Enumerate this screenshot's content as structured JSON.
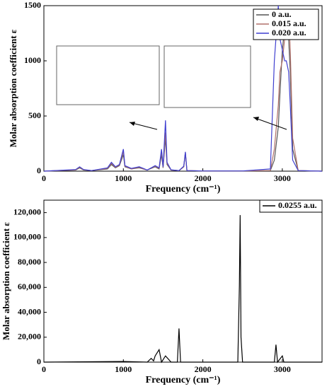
{
  "chart_data": [
    {
      "type": "line",
      "ylabel": "Molar absorption coefficient ε",
      "xlabel": "Frequency (cm⁻¹)",
      "xlim": [
        0,
        3500
      ],
      "ylim": [
        0,
        1500
      ],
      "xticks": [
        0,
        1000,
        2000,
        3000
      ],
      "yticks": [
        0,
        500,
        1000,
        1500
      ],
      "legend": "upper right",
      "x": [
        0,
        400,
        450,
        500,
        600,
        800,
        850,
        900,
        950,
        1000,
        1020,
        1100,
        1200,
        1250,
        1300,
        1400,
        1450,
        1480,
        1500,
        1530,
        1550,
        1600,
        1700,
        1760,
        1780,
        1800,
        2000,
        2500,
        2850,
        2900,
        2950,
        2970,
        3000,
        3030,
        3050,
        3080,
        3100,
        3130,
        3200,
        3500
      ],
      "series": [
        {
          "name": "0 a.u.",
          "color": "#555555",
          "values": [
            0,
            10,
            30,
            10,
            5,
            20,
            60,
            30,
            50,
            150,
            40,
            20,
            30,
            20,
            10,
            40,
            20,
            150,
            30,
            300,
            60,
            10,
            5,
            40,
            160,
            5,
            2,
            2,
            5,
            100,
            400,
            700,
            1100,
            1300,
            1380,
            1200,
            900,
            200,
            5,
            0
          ]
        },
        {
          "name": "0.015 a.u.",
          "color": "#b0706a",
          "values": [
            0,
            12,
            35,
            12,
            5,
            25,
            70,
            35,
            55,
            180,
            45,
            20,
            35,
            20,
            10,
            45,
            25,
            180,
            35,
            350,
            70,
            10,
            5,
            40,
            170,
            5,
            2,
            2,
            5,
            200,
            600,
            900,
            1000,
            1200,
            1300,
            1420,
            1100,
            300,
            5,
            0
          ]
        },
        {
          "name": "0.020 a.u.",
          "color": "#3f3fd0",
          "values": [
            0,
            15,
            40,
            15,
            5,
            30,
            80,
            40,
            60,
            200,
            50,
            25,
            40,
            25,
            10,
            50,
            30,
            200,
            40,
            460,
            80,
            12,
            5,
            45,
            175,
            5,
            2,
            2,
            20,
            1000,
            1500,
            1200,
            1100,
            1000,
            1000,
            900,
            600,
            100,
            5,
            0
          ]
        }
      ]
    },
    {
      "type": "line",
      "ylabel": "Molar absorption coefficient ε",
      "xlabel": "Frequency (cm⁻¹)",
      "xlim": [
        0,
        3500
      ],
      "ylim": [
        0,
        130000
      ],
      "xticks": [
        0,
        1000,
        2000,
        3000
      ],
      "yticks": [
        0,
        {
          "value": 20000,
          "label": "20,000"
        },
        {
          "value": 40000,
          "label": "40,000"
        },
        {
          "value": 60000,
          "label": "60,000"
        },
        {
          "value": 80000,
          "label": "80,000"
        },
        {
          "value": 100000,
          "label": "100,000"
        },
        {
          "value": 120000,
          "label": "120,000"
        }
      ],
      "legend": "upper right",
      "x": [
        0,
        1000,
        1300,
        1350,
        1380,
        1400,
        1450,
        1480,
        1530,
        1600,
        1680,
        1700,
        1720,
        2000,
        2440,
        2460,
        2470,
        2480,
        2500,
        2800,
        2900,
        2920,
        2940,
        3000,
        3020,
        3100,
        3500
      ],
      "series": [
        {
          "name": "0.0255 a.u.",
          "color": "#000000",
          "values": [
            0,
            500,
            0,
            3000,
            1000,
            5000,
            10000,
            0,
            5000,
            0,
            0,
            27000,
            0,
            0,
            0,
            61000,
            118000,
            20000,
            0,
            0,
            0,
            14000,
            0,
            5000,
            0,
            0,
            0
          ]
        }
      ]
    }
  ]
}
